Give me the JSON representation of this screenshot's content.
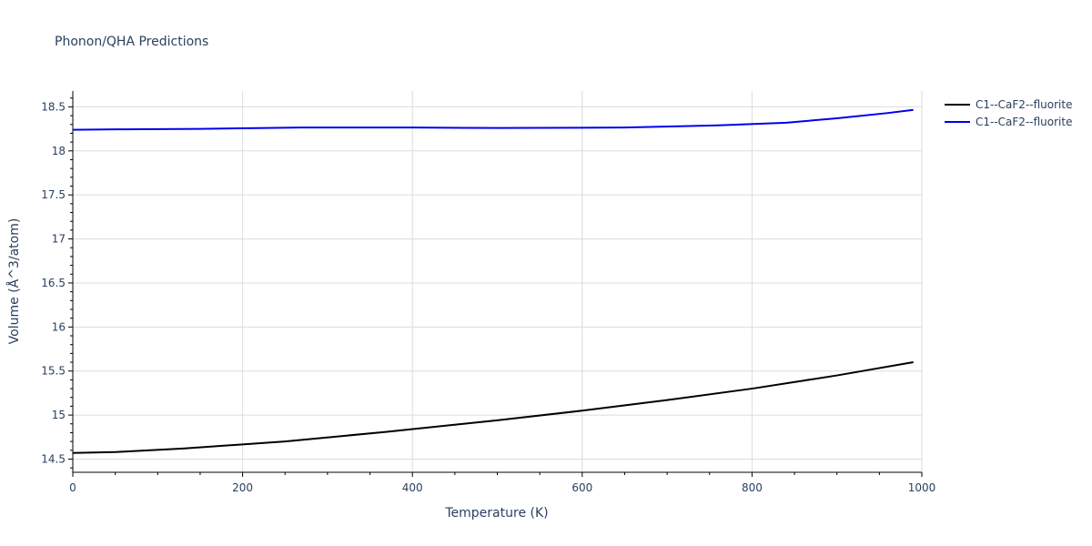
{
  "chart_data": {
    "type": "line",
    "title": "Phonon/QHA Predictions",
    "xlabel": "Temperature (K)",
    "ylabel": "Volume (Å^3/atom)",
    "xlim": [
      0,
      1000
    ],
    "ylim": [
      14.35,
      18.68
    ],
    "x_ticks": [
      0,
      200,
      400,
      600,
      800,
      1000
    ],
    "x_tick_labels": [
      "0",
      "200",
      "400",
      "600",
      "800",
      "1000"
    ],
    "y_ticks": [
      14.5,
      15,
      15.5,
      16,
      16.5,
      17,
      17.5,
      18,
      18.5
    ],
    "y_tick_labels": [
      "14.5",
      "15",
      "15.5",
      "16",
      "16.5",
      "17",
      "17.5",
      "18",
      "18.5"
    ],
    "grid": true,
    "legend_position": "top-right outside",
    "series": [
      {
        "name": "C1--CaF2--fluorite",
        "color": "#000000",
        "x": [
          0,
          50,
          130,
          250,
          370,
          500,
          600,
          700,
          800,
          860,
          900,
          990
        ],
        "y": [
          14.57,
          14.58,
          14.62,
          14.7,
          14.81,
          14.94,
          15.05,
          15.17,
          15.3,
          15.39,
          15.45,
          15.6
        ]
      },
      {
        "name": "C1--CaF2--fluorite",
        "color": "#0000ee",
        "x": [
          0,
          60,
          150,
          270,
          400,
          500,
          650,
          760,
          840,
          900,
          960,
          990
        ],
        "y": [
          18.24,
          18.245,
          18.25,
          18.265,
          18.265,
          18.26,
          18.265,
          18.29,
          18.32,
          18.37,
          18.43,
          18.465
        ]
      }
    ]
  }
}
